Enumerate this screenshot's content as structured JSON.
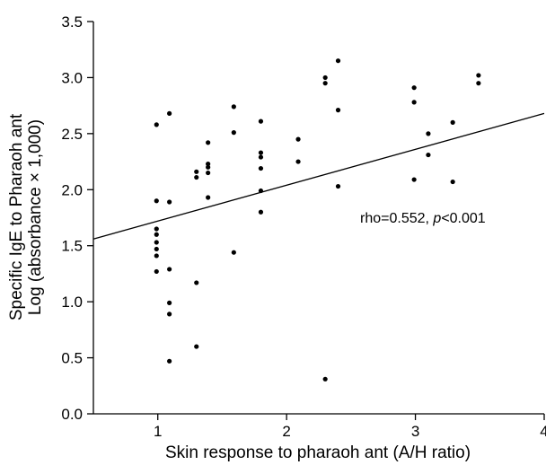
{
  "chart_data": {
    "type": "scatter",
    "title": "",
    "xlabel": "Skin response to pharaoh ant (A/H ratio)",
    "ylabel_line1": "Specific IgE to Pharaoh ant",
    "ylabel_line2": "Log (absorbance × 1,000)",
    "xlim": [
      0.5,
      4.0
    ],
    "ylim": [
      0.0,
      3.5
    ],
    "x_ticks": [
      1,
      2,
      3,
      4
    ],
    "x_tick_labels": [
      "1",
      "2",
      "3",
      "4"
    ],
    "y_ticks": [
      0.0,
      0.5,
      1.0,
      1.5,
      2.0,
      2.5,
      3.0,
      3.5
    ],
    "y_tick_labels": [
      "0.0",
      "0.5",
      "1.0",
      "1.5",
      "2.0",
      "2.5",
      "3.0",
      "3.5"
    ],
    "grid": false,
    "annotation": {
      "prefix": "rho=0.552, ",
      "p_symbol": "p",
      "suffix": "<0.001"
    },
    "regression_line": {
      "x": [
        0.5,
        4.0
      ],
      "y": [
        1.56,
        2.68
      ]
    },
    "points": [
      [
        0.99,
        2.58
      ],
      [
        0.99,
        1.9
      ],
      [
        0.99,
        1.65
      ],
      [
        0.99,
        1.6
      ],
      [
        0.99,
        1.53
      ],
      [
        0.99,
        1.47
      ],
      [
        0.99,
        1.41
      ],
      [
        0.99,
        1.27
      ],
      [
        1.09,
        2.68
      ],
      [
        1.09,
        1.89
      ],
      [
        1.09,
        1.29
      ],
      [
        1.09,
        0.99
      ],
      [
        1.09,
        0.89
      ],
      [
        1.09,
        0.47
      ],
      [
        1.3,
        2.16
      ],
      [
        1.3,
        2.11
      ],
      [
        1.3,
        1.17
      ],
      [
        1.3,
        0.6
      ],
      [
        1.39,
        2.42
      ],
      [
        1.39,
        2.23
      ],
      [
        1.39,
        2.2
      ],
      [
        1.39,
        2.15
      ],
      [
        1.39,
        1.93
      ],
      [
        1.59,
        2.74
      ],
      [
        1.59,
        2.51
      ],
      [
        1.59,
        1.44
      ],
      [
        1.8,
        2.61
      ],
      [
        1.8,
        2.33
      ],
      [
        1.8,
        2.29
      ],
      [
        1.8,
        2.19
      ],
      [
        1.8,
        1.99
      ],
      [
        1.8,
        1.8
      ],
      [
        2.09,
        2.45
      ],
      [
        2.09,
        2.25
      ],
      [
        2.3,
        3.0
      ],
      [
        2.3,
        2.95
      ],
      [
        2.3,
        0.31
      ],
      [
        2.4,
        3.15
      ],
      [
        2.4,
        2.71
      ],
      [
        2.4,
        2.03
      ],
      [
        2.99,
        2.91
      ],
      [
        2.99,
        2.78
      ],
      [
        2.99,
        2.09
      ],
      [
        3.1,
        2.5
      ],
      [
        3.1,
        2.31
      ],
      [
        3.29,
        2.6
      ],
      [
        3.29,
        2.07
      ],
      [
        3.49,
        3.02
      ],
      [
        3.49,
        2.95
      ]
    ]
  }
}
